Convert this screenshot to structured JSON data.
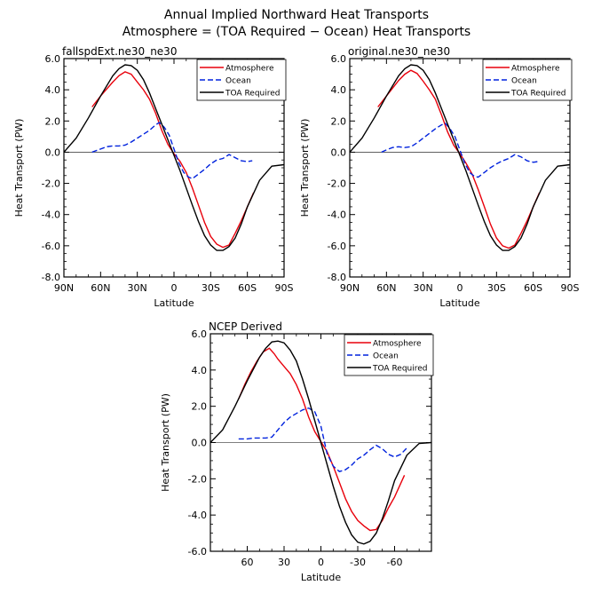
{
  "figure": {
    "title_line1": "Annual Implied Northward Heat Transports",
    "title_line2": "Atmosphere = (TOA Required − Ocean) Heat Transports"
  },
  "chart_data": [
    {
      "type": "line",
      "title": "fallspdExt.ne30_ne30",
      "xlabel": "Latitude",
      "ylabel": "Heat Transport (PW)",
      "xlim": [
        90,
        -90
      ],
      "ylim": [
        -8,
        6
      ],
      "xticks": [
        90,
        60,
        30,
        0,
        -30,
        -60,
        -90
      ],
      "xtick_labels": [
        "90N",
        "60N",
        "30N",
        "0",
        "30S",
        "60S",
        "90S"
      ],
      "yticks": [
        6,
        4,
        2,
        0,
        -2,
        -4,
        -6,
        -8
      ],
      "ytick_labels": [
        "6.0",
        "4.0",
        "2.0",
        "0.0",
        "-2.0",
        "-4.0",
        "-6.0",
        "-8.0"
      ],
      "legend_position": "top-right",
      "series": [
        {
          "name": "Atmosphere",
          "color": "#e8000b",
          "dash": "solid",
          "x": [
            67,
            60,
            50,
            45,
            40,
            35,
            30,
            25,
            20,
            15,
            10,
            5,
            0,
            -5,
            -10,
            -15,
            -20,
            -25,
            -30,
            -35,
            -40,
            -45,
            -50,
            -55,
            -60,
            -65
          ],
          "y": [
            2.9,
            3.6,
            4.5,
            4.9,
            5.15,
            5.0,
            4.5,
            4.0,
            3.4,
            2.5,
            1.4,
            0.5,
            -0.1,
            -0.6,
            -1.3,
            -2.3,
            -3.4,
            -4.5,
            -5.4,
            -5.9,
            -6.1,
            -5.95,
            -5.2,
            -4.4,
            -3.5,
            -2.6
          ]
        },
        {
          "name": "Ocean",
          "color": "#0022dd",
          "dash": "dashed",
          "x": [
            67,
            60,
            55,
            50,
            45,
            40,
            35,
            30,
            25,
            20,
            15,
            12,
            8,
            4,
            0,
            -4,
            -8,
            -12,
            -15,
            -20,
            -25,
            -30,
            -35,
            -40,
            -45,
            -50,
            -55,
            -60,
            -64
          ],
          "y": [
            0,
            0.2,
            0.35,
            0.4,
            0.4,
            0.45,
            0.65,
            0.9,
            1.15,
            1.4,
            1.75,
            1.9,
            1.6,
            1.1,
            0.2,
            -0.7,
            -1.3,
            -1.6,
            -1.7,
            -1.4,
            -1.1,
            -0.75,
            -0.5,
            -0.4,
            -0.15,
            -0.35,
            -0.55,
            -0.6,
            -0.55
          ]
        },
        {
          "name": "TOA Required",
          "color": "#000000",
          "dash": "solid",
          "x": [
            90,
            80,
            70,
            60,
            50,
            45,
            40,
            35,
            30,
            25,
            20,
            15,
            10,
            5,
            0,
            -5,
            -10,
            -15,
            -20,
            -25,
            -30,
            -35,
            -40,
            -45,
            -50,
            -55,
            -60,
            -70,
            -80,
            -90
          ],
          "y": [
            0,
            0.9,
            2.2,
            3.6,
            4.9,
            5.35,
            5.6,
            5.55,
            5.25,
            4.65,
            3.8,
            2.8,
            1.8,
            0.8,
            -0.2,
            -1.2,
            -2.3,
            -3.4,
            -4.45,
            -5.35,
            -5.95,
            -6.3,
            -6.3,
            -6.05,
            -5.5,
            -4.6,
            -3.5,
            -1.8,
            -0.9,
            -0.8
          ]
        }
      ]
    },
    {
      "type": "line",
      "title": "original.ne30_ne30",
      "xlabel": "Latitude",
      "ylabel": "Heat Transport (PW)",
      "xlim": [
        90,
        -90
      ],
      "ylim": [
        -8,
        6
      ],
      "xticks": [
        90,
        60,
        30,
        0,
        -30,
        -60,
        -90
      ],
      "xtick_labels": [
        "90N",
        "60N",
        "30N",
        "0",
        "30S",
        "60S",
        "90S"
      ],
      "yticks": [
        6,
        4,
        2,
        0,
        -2,
        -4,
        -6,
        -8
      ],
      "ytick_labels": [
        "6.0",
        "4.0",
        "2.0",
        "0.0",
        "-2.0",
        "-4.0",
        "-6.0",
        "-8.0"
      ],
      "legend_position": "top-right",
      "series": [
        {
          "name": "Atmosphere",
          "color": "#e8000b",
          "dash": "solid",
          "x": [
            67,
            60,
            50,
            45,
            40,
            35,
            30,
            25,
            20,
            15,
            10,
            5,
            0,
            -5,
            -10,
            -15,
            -20,
            -25,
            -30,
            -35,
            -40,
            -45,
            -50,
            -55,
            -60,
            -65
          ],
          "y": [
            2.9,
            3.6,
            4.6,
            5.0,
            5.25,
            5.05,
            4.55,
            4.0,
            3.4,
            2.4,
            1.3,
            0.45,
            -0.1,
            -0.7,
            -1.4,
            -2.4,
            -3.5,
            -4.6,
            -5.5,
            -6.0,
            -6.15,
            -5.95,
            -5.2,
            -4.4,
            -3.5,
            -2.6
          ]
        },
        {
          "name": "Ocean",
          "color": "#0022dd",
          "dash": "dashed",
          "x": [
            64,
            60,
            55,
            50,
            45,
            40,
            35,
            30,
            25,
            20,
            15,
            12,
            8,
            4,
            0,
            -4,
            -8,
            -12,
            -15,
            -20,
            -25,
            -30,
            -35,
            -40,
            -45,
            -50,
            -55,
            -60,
            -64
          ],
          "y": [
            0,
            0.15,
            0.3,
            0.35,
            0.3,
            0.35,
            0.6,
            0.9,
            1.2,
            1.5,
            1.75,
            1.85,
            1.5,
            1.0,
            0.15,
            -0.7,
            -1.3,
            -1.55,
            -1.6,
            -1.3,
            -1.0,
            -0.75,
            -0.55,
            -0.4,
            -0.15,
            -0.3,
            -0.55,
            -0.65,
            -0.6
          ]
        },
        {
          "name": "TOA Required",
          "color": "#000000",
          "dash": "solid",
          "x": [
            90,
            80,
            70,
            60,
            50,
            45,
            40,
            35,
            30,
            25,
            20,
            15,
            10,
            5,
            0,
            -5,
            -10,
            -15,
            -20,
            -25,
            -30,
            -35,
            -40,
            -45,
            -50,
            -55,
            -60,
            -70,
            -80,
            -90
          ],
          "y": [
            0,
            0.9,
            2.2,
            3.6,
            4.9,
            5.35,
            5.6,
            5.55,
            5.25,
            4.65,
            3.8,
            2.8,
            1.8,
            0.8,
            -0.2,
            -1.2,
            -2.3,
            -3.4,
            -4.45,
            -5.35,
            -5.95,
            -6.3,
            -6.3,
            -6.05,
            -5.5,
            -4.6,
            -3.5,
            -1.8,
            -0.9,
            -0.8
          ]
        }
      ]
    },
    {
      "type": "line",
      "title": "NCEP Derived",
      "xlabel": "Latitude",
      "ylabel": "Heat Transport (PW)",
      "xlim": [
        90,
        -90
      ],
      "ylim": [
        -6,
        6
      ],
      "xticks": [
        60,
        30,
        0,
        -30,
        -60
      ],
      "xtick_labels": [
        "60",
        "30",
        "0",
        "-30",
        "-60"
      ],
      "yticks": [
        6,
        4,
        2,
        0,
        -2,
        -4,
        -6
      ],
      "ytick_labels": [
        "6.0",
        "4.0",
        "2.0",
        "0.0",
        "-2.0",
        "-4.0",
        "-6.0"
      ],
      "legend_position": "top-right",
      "series": [
        {
          "name": "Atmosphere",
          "color": "#e8000b",
          "dash": "solid",
          "x": [
            67,
            62,
            57,
            52,
            47,
            42,
            38,
            35,
            30,
            25,
            20,
            15,
            10,
            5,
            0,
            -5,
            -10,
            -15,
            -20,
            -25,
            -30,
            -35,
            -40,
            -45,
            -50,
            -55,
            -60,
            -68
          ],
          "y": [
            2.4,
            3.2,
            3.9,
            4.5,
            5.0,
            5.2,
            4.9,
            4.6,
            4.2,
            3.8,
            3.2,
            2.4,
            1.4,
            0.6,
            0.05,
            -0.5,
            -1.3,
            -2.2,
            -3.1,
            -3.8,
            -4.3,
            -4.6,
            -4.85,
            -4.8,
            -4.3,
            -3.6,
            -3.0,
            -1.8
          ]
        },
        {
          "name": "Ocean",
          "color": "#0022dd",
          "dash": "dashed",
          "x": [
            67,
            60,
            55,
            50,
            45,
            40,
            35,
            30,
            25,
            20,
            15,
            10,
            5,
            0,
            -5,
            -10,
            -15,
            -20,
            -25,
            -30,
            -35,
            -40,
            -45,
            -50,
            -55,
            -60,
            -65,
            -70
          ],
          "y": [
            0.2,
            0.2,
            0.25,
            0.25,
            0.25,
            0.3,
            0.7,
            1.1,
            1.4,
            1.6,
            1.8,
            1.9,
            1.7,
            0.9,
            -0.6,
            -1.3,
            -1.6,
            -1.5,
            -1.25,
            -0.9,
            -0.7,
            -0.4,
            -0.15,
            -0.35,
            -0.65,
            -0.8,
            -0.65,
            -0.3
          ]
        },
        {
          "name": "TOA Required",
          "color": "#000000",
          "dash": "solid",
          "x": [
            90,
            80,
            70,
            60,
            50,
            45,
            40,
            35,
            30,
            25,
            20,
            15,
            10,
            5,
            0,
            -5,
            -10,
            -15,
            -20,
            -25,
            -30,
            -35,
            -40,
            -45,
            -50,
            -55,
            -60,
            -70,
            -80,
            -90
          ],
          "y": [
            0,
            0.7,
            2.0,
            3.4,
            4.7,
            5.2,
            5.55,
            5.6,
            5.5,
            5.1,
            4.5,
            3.5,
            2.4,
            1.2,
            0,
            -1.2,
            -2.4,
            -3.5,
            -4.4,
            -5.1,
            -5.5,
            -5.6,
            -5.45,
            -5.0,
            -4.2,
            -3.2,
            -2.1,
            -0.7,
            -0.05,
            0
          ]
        }
      ]
    }
  ]
}
